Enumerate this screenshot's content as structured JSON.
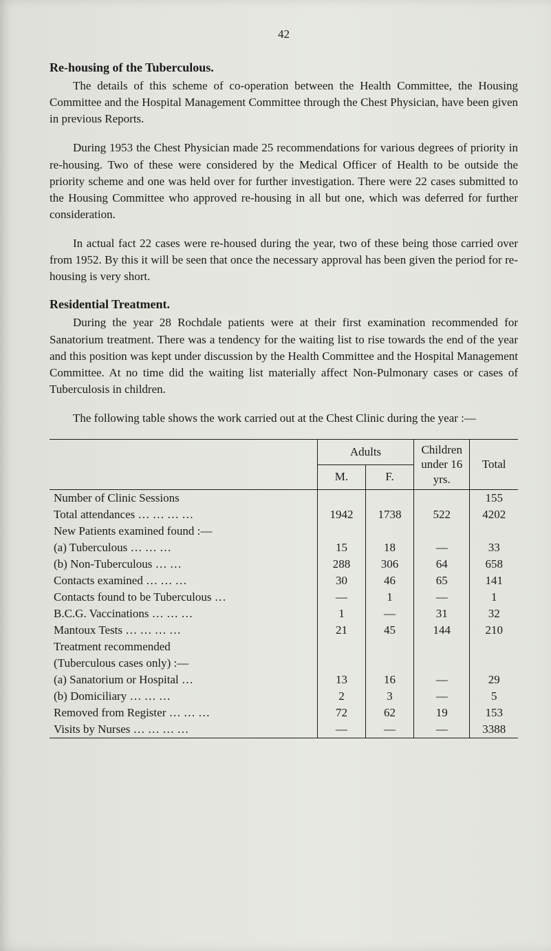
{
  "page_number": "42",
  "sections": {
    "rehousing": {
      "heading": "Re-housing of the Tuberculous.",
      "p1": "The details of this scheme of co-operation between the Health Committee, the Housing Committee and the Hospital Management Committee through the Chest Physician, have been given in previous Reports.",
      "p2": "During 1953 the Chest Physician made 25 recommendations for various degrees of priority in re-housing. Two of these were considered by the Medical Officer of Health to be outside the priority scheme and one was held over for further investigation. There were 22 cases submitted to the Housing Committee who approved re-housing in all but one, which was deferred for further consideration.",
      "p3": "In actual fact 22 cases were re-housed during the year, two of these being those carried over from 1952. By this it will be seen that once the necessary approval has been given the period for re-housing is very short."
    },
    "residential": {
      "heading": "Residential Treatment.",
      "p1": "During the year 28 Rochdale patients were at their first examination recommended for Sanatorium treatment. There was a tendency for the waiting list to rise towards the end of the year and this position was kept under discussion by the Health Committee and the Hospital Management Committee. At no time did the waiting list materially affect Non-Pulmonary cases or cases of Tuberculosis in children."
    },
    "table_intro": "The following table shows the work carried out at the Chest Clinic during the year :—"
  },
  "table": {
    "headers": {
      "adults": "Adults",
      "m": "M.",
      "f": "F.",
      "children": "Children under 16 yrs.",
      "total": "Total"
    },
    "rows": [
      {
        "label": "Number of Clinic Sessions",
        "indent": 0,
        "m": "",
        "f": "",
        "children": "",
        "total": "155"
      },
      {
        "label": "Total attendances …   …   …   …",
        "indent": 0,
        "m": "1942",
        "f": "1738",
        "children": "522",
        "total": "4202"
      },
      {
        "label": "New Patients examined found :—",
        "indent": 0,
        "m": "",
        "f": "",
        "children": "",
        "total": ""
      },
      {
        "label": "(a)  Tuberculous    …   …   …",
        "indent": 1,
        "m": "15",
        "f": "18",
        "children": "—",
        "total": "33"
      },
      {
        "label": "(b)  Non-Tuberculous     …   …",
        "indent": 1,
        "m": "288",
        "f": "306",
        "children": "64",
        "total": "658"
      },
      {
        "label": "Contacts examined       …   …   …",
        "indent": 0,
        "m": "30",
        "f": "46",
        "children": "65",
        "total": "141"
      },
      {
        "label": "Contacts found to be Tuberculous    …",
        "indent": 0,
        "m": "—",
        "f": "1",
        "children": "—",
        "total": "1"
      },
      {
        "label": "B.C.G. Vaccinations       …   …   …",
        "indent": 0,
        "m": "1",
        "f": "—",
        "children": "31",
        "total": "32"
      },
      {
        "label": "Mantoux Tests    …   …   …   …",
        "indent": 0,
        "m": "21",
        "f": "45",
        "children": "144",
        "total": "210"
      },
      {
        "label": "Treatment recommended",
        "indent": 0,
        "m": "",
        "f": "",
        "children": "",
        "total": ""
      },
      {
        "label": "(Tuberculous cases only) :—",
        "indent": 1,
        "m": "",
        "f": "",
        "children": "",
        "total": ""
      },
      {
        "label": "(a)  Sanatorium or Hospital     …",
        "indent": 2,
        "m": "13",
        "f": "16",
        "children": "—",
        "total": "29"
      },
      {
        "label": "(b)  Domiciliary    …   …   …",
        "indent": 2,
        "m": "2",
        "f": "3",
        "children": "—",
        "total": "5"
      },
      {
        "label": "Removed from Register …   …   …",
        "indent": 0,
        "m": "72",
        "f": "62",
        "children": "19",
        "total": "153"
      },
      {
        "label": "Visits by Nurses   …   …   …   …",
        "indent": 0,
        "m": "—",
        "f": "—",
        "children": "—",
        "total": "3388"
      }
    ]
  }
}
